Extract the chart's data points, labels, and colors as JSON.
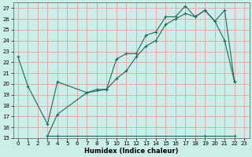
{
  "xlabel": "Humidex (Indice chaleur)",
  "xlim": [
    -0.5,
    23.5
  ],
  "ylim": [
    15,
    27.5
  ],
  "xticks": [
    0,
    1,
    2,
    3,
    4,
    5,
    6,
    7,
    8,
    9,
    10,
    11,
    12,
    13,
    14,
    15,
    16,
    17,
    18,
    19,
    20,
    21,
    22,
    23
  ],
  "yticks": [
    15,
    16,
    17,
    18,
    19,
    20,
    21,
    22,
    23,
    24,
    25,
    26,
    27
  ],
  "bg_color": "#cceee8",
  "grid_color": "#e8a0a0",
  "line_color": "#1a6b5a",
  "line1_x": [
    0,
    1,
    3,
    4,
    7,
    8,
    9,
    10,
    11,
    12,
    13,
    14,
    15,
    16,
    17,
    18,
    19,
    20,
    21,
    22
  ],
  "line1_y": [
    22.5,
    19.8,
    16.3,
    20.2,
    19.2,
    19.5,
    19.5,
    22.3,
    22.8,
    22.8,
    24.5,
    24.8,
    26.2,
    26.2,
    27.2,
    26.2,
    26.8,
    25.8,
    24.0,
    20.2
  ],
  "line2_x": [
    3,
    4,
    7,
    9,
    10,
    11,
    12,
    13,
    14,
    15,
    16,
    17,
    18,
    19,
    20,
    21,
    22
  ],
  "line2_y": [
    15.2,
    17.2,
    19.2,
    19.5,
    20.5,
    21.2,
    22.5,
    23.5,
    24.0,
    25.5,
    26.0,
    26.5,
    26.2,
    26.8,
    25.8,
    26.8,
    20.2
  ],
  "line3_x": [
    3,
    4,
    19,
    22
  ],
  "line3_y": [
    15.2,
    15.2,
    15.2,
    15.2
  ]
}
